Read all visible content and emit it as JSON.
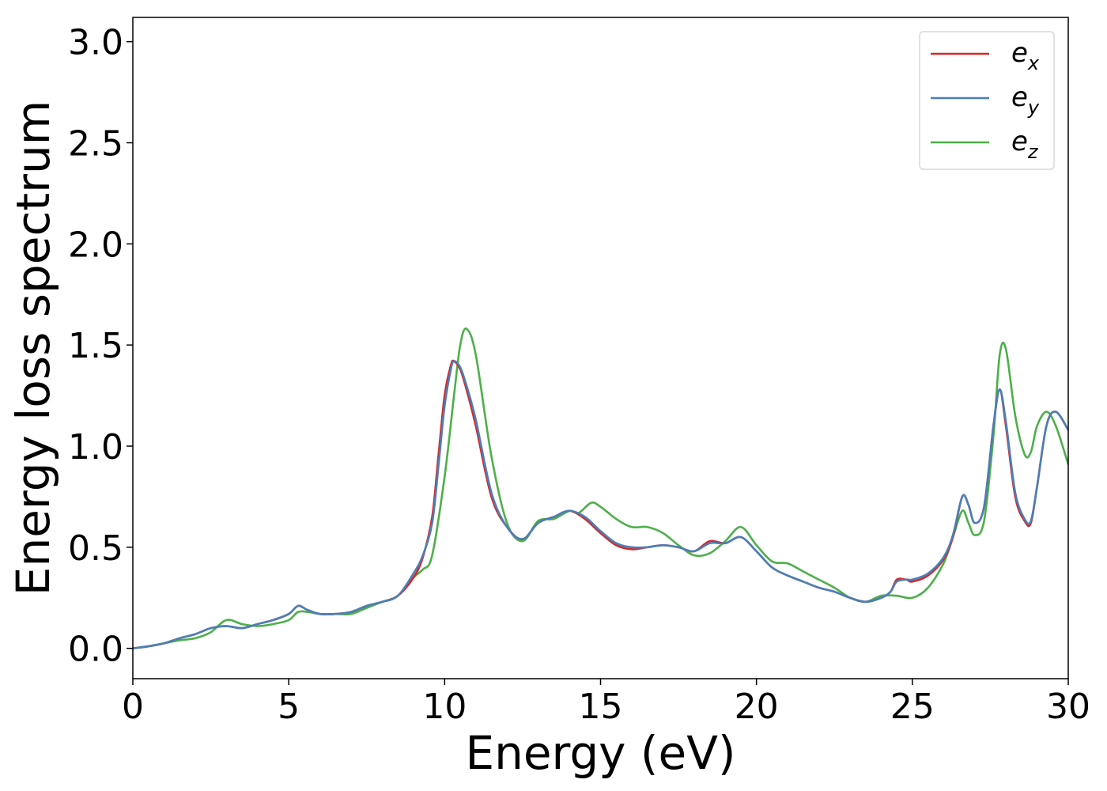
{
  "chart_data": {
    "type": "line",
    "title": "",
    "xlabel": "Energy (eV)",
    "ylabel": "Energy loss spectrum",
    "xlim": [
      0,
      30
    ],
    "ylim": [
      -0.15,
      3.12
    ],
    "xticks": [
      0,
      5,
      10,
      15,
      20,
      25,
      30
    ],
    "xtick_labels": [
      "0",
      "5",
      "10",
      "15",
      "20",
      "25",
      "30"
    ],
    "yticks": [
      0.0,
      0.5,
      1.0,
      1.5,
      2.0,
      2.5,
      3.0
    ],
    "ytick_labels": [
      "0.0",
      "0.5",
      "1.0",
      "1.5",
      "2.0",
      "2.5",
      "3.0"
    ],
    "grid": false,
    "legend_position": "top-right",
    "series": [
      {
        "name": "e_x",
        "legend_base": "e",
        "legend_sub": "x",
        "color": "#d62728",
        "x": [
          0,
          0.5,
          1.0,
          1.5,
          2.0,
          2.5,
          3.0,
          3.5,
          4.0,
          4.5,
          5.0,
          5.3,
          5.6,
          6.0,
          6.5,
          7.0,
          7.5,
          8.0,
          8.5,
          9.0,
          9.3,
          9.6,
          9.8,
          10.0,
          10.2,
          10.3,
          10.5,
          10.7,
          11.0,
          11.5,
          12.0,
          12.5,
          13.0,
          13.5,
          14.0,
          14.5,
          15.0,
          15.5,
          16.0,
          16.5,
          17.0,
          17.5,
          18.0,
          18.5,
          19.0,
          19.5,
          20.0,
          20.5,
          21.0,
          21.5,
          22.0,
          22.5,
          23.0,
          23.5,
          24.0,
          24.3,
          24.5,
          24.8,
          25.0,
          25.5,
          26.0,
          26.3,
          26.6,
          26.8,
          27.0,
          27.3,
          27.6,
          27.8,
          28.0,
          28.3,
          28.6,
          28.8,
          29.0,
          29.3,
          29.6,
          30.0
        ],
        "values": [
          0.0,
          0.01,
          0.025,
          0.05,
          0.07,
          0.1,
          0.11,
          0.1,
          0.12,
          0.14,
          0.17,
          0.21,
          0.19,
          0.17,
          0.17,
          0.18,
          0.21,
          0.23,
          0.26,
          0.35,
          0.45,
          0.65,
          0.95,
          1.25,
          1.4,
          1.42,
          1.38,
          1.28,
          1.1,
          0.75,
          0.6,
          0.54,
          0.62,
          0.65,
          0.68,
          0.64,
          0.57,
          0.51,
          0.49,
          0.5,
          0.51,
          0.5,
          0.48,
          0.53,
          0.52,
          0.55,
          0.48,
          0.4,
          0.36,
          0.33,
          0.3,
          0.28,
          0.25,
          0.23,
          0.25,
          0.28,
          0.34,
          0.34,
          0.33,
          0.36,
          0.44,
          0.55,
          0.75,
          0.71,
          0.62,
          0.7,
          1.1,
          1.28,
          1.1,
          0.75,
          0.63,
          0.62,
          0.8,
          1.1,
          1.17,
          1.08
        ]
      },
      {
        "name": "e_y",
        "legend_base": "e",
        "legend_sub": "y",
        "color": "#4a7fb8",
        "x": [
          0,
          0.5,
          1.0,
          1.5,
          2.0,
          2.5,
          3.0,
          3.5,
          4.0,
          4.5,
          5.0,
          5.3,
          5.6,
          6.0,
          6.5,
          7.0,
          7.5,
          8.0,
          8.5,
          9.0,
          9.3,
          9.6,
          9.8,
          10.0,
          10.2,
          10.3,
          10.5,
          10.7,
          11.0,
          11.5,
          12.0,
          12.5,
          13.0,
          13.5,
          14.0,
          14.5,
          15.0,
          15.5,
          16.0,
          16.5,
          17.0,
          17.5,
          18.0,
          18.5,
          19.0,
          19.5,
          20.0,
          20.5,
          21.0,
          21.5,
          22.0,
          22.5,
          23.0,
          23.5,
          24.0,
          24.3,
          24.5,
          24.8,
          25.0,
          25.5,
          26.0,
          26.3,
          26.6,
          26.8,
          27.0,
          27.3,
          27.6,
          27.8,
          28.0,
          28.3,
          28.6,
          28.8,
          29.0,
          29.3,
          29.6,
          30.0
        ],
        "values": [
          0.0,
          0.01,
          0.025,
          0.05,
          0.07,
          0.1,
          0.11,
          0.1,
          0.12,
          0.14,
          0.17,
          0.21,
          0.19,
          0.17,
          0.17,
          0.18,
          0.21,
          0.23,
          0.26,
          0.37,
          0.46,
          0.62,
          0.9,
          1.2,
          1.38,
          1.42,
          1.39,
          1.3,
          1.13,
          0.77,
          0.6,
          0.54,
          0.62,
          0.65,
          0.68,
          0.65,
          0.58,
          0.52,
          0.5,
          0.5,
          0.51,
          0.5,
          0.48,
          0.52,
          0.52,
          0.55,
          0.48,
          0.4,
          0.36,
          0.33,
          0.3,
          0.28,
          0.25,
          0.23,
          0.25,
          0.28,
          0.33,
          0.34,
          0.34,
          0.37,
          0.45,
          0.56,
          0.75,
          0.71,
          0.62,
          0.7,
          1.1,
          1.28,
          1.12,
          0.77,
          0.64,
          0.63,
          0.8,
          1.1,
          1.17,
          1.08
        ]
      },
      {
        "name": "e_z",
        "legend_base": "e",
        "legend_sub": "z",
        "color": "#4daf4a",
        "x": [
          0,
          0.5,
          1.0,
          1.5,
          2.0,
          2.5,
          3.0,
          3.5,
          4.0,
          4.5,
          5.0,
          5.3,
          5.6,
          6.0,
          6.5,
          7.0,
          7.5,
          8.0,
          8.5,
          9.0,
          9.3,
          9.6,
          10.0,
          10.3,
          10.5,
          10.7,
          11.0,
          11.5,
          12.0,
          12.5,
          13.0,
          13.5,
          14.0,
          14.3,
          14.7,
          15.0,
          15.5,
          16.0,
          16.5,
          17.0,
          17.5,
          18.0,
          18.5,
          19.0,
          19.5,
          20.0,
          20.5,
          21.0,
          21.5,
          22.0,
          22.5,
          23.0,
          23.5,
          24.0,
          24.5,
          25.0,
          25.5,
          26.0,
          26.3,
          26.6,
          26.8,
          27.0,
          27.3,
          27.6,
          27.8,
          28.0,
          28.3,
          28.6,
          28.8,
          29.0,
          29.3,
          29.6,
          30.0
        ],
        "values": [
          0.0,
          0.01,
          0.025,
          0.04,
          0.05,
          0.08,
          0.14,
          0.12,
          0.11,
          0.12,
          0.14,
          0.18,
          0.18,
          0.17,
          0.17,
          0.17,
          0.2,
          0.23,
          0.26,
          0.35,
          0.39,
          0.46,
          0.85,
          1.25,
          1.5,
          1.58,
          1.45,
          0.95,
          0.62,
          0.53,
          0.63,
          0.64,
          0.68,
          0.67,
          0.72,
          0.7,
          0.64,
          0.6,
          0.6,
          0.57,
          0.51,
          0.46,
          0.47,
          0.53,
          0.6,
          0.51,
          0.43,
          0.42,
          0.38,
          0.34,
          0.3,
          0.25,
          0.23,
          0.26,
          0.26,
          0.25,
          0.3,
          0.42,
          0.55,
          0.68,
          0.62,
          0.56,
          0.63,
          1.05,
          1.45,
          1.48,
          1.15,
          0.96,
          0.97,
          1.1,
          1.17,
          1.1,
          0.91
        ]
      }
    ]
  }
}
